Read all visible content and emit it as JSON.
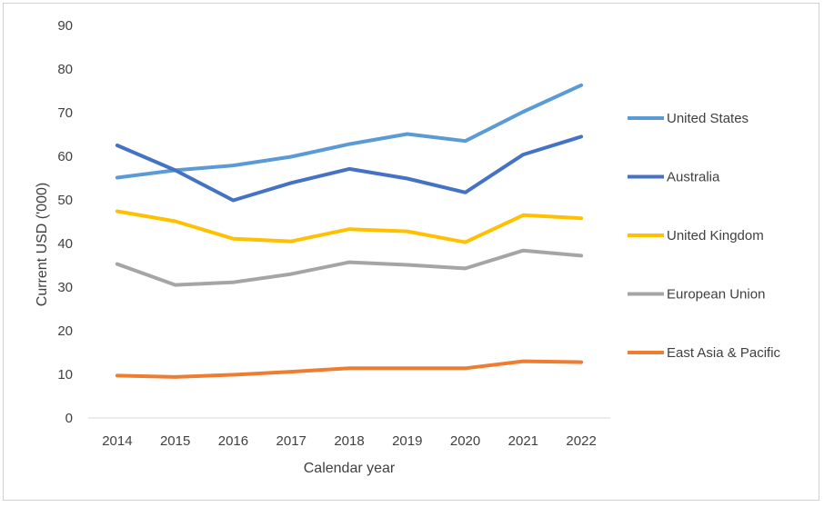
{
  "chart_data": {
    "type": "line",
    "title": "",
    "xlabel": "Calendar year",
    "ylabel": "Current USD ('000)",
    "categories": [
      "2014",
      "2015",
      "2016",
      "2017",
      "2018",
      "2019",
      "2020",
      "2021",
      "2022"
    ],
    "ylim": [
      0,
      90
    ],
    "yticks": [
      0,
      10,
      20,
      30,
      40,
      50,
      60,
      70,
      80,
      90
    ],
    "grid": false,
    "legend_position": "right",
    "series": [
      {
        "name": "United States",
        "color": "#5B9BD5",
        "values": [
          55.1,
          56.8,
          57.9,
          59.9,
          62.8,
          65.1,
          63.5,
          70.2,
          76.3
        ]
      },
      {
        "name": "Australia",
        "color": "#4472C4",
        "values": [
          62.5,
          56.8,
          49.9,
          53.9,
          57.1,
          54.9,
          51.7,
          60.4,
          64.5
        ]
      },
      {
        "name": "United Kingdom",
        "color": "#FFC000",
        "values": [
          47.4,
          45.1,
          41.1,
          40.5,
          43.3,
          42.8,
          40.3,
          46.5,
          45.8
        ]
      },
      {
        "name": "European Union",
        "color": "#A5A5A5",
        "values": [
          35.3,
          30.5,
          31.1,
          33.0,
          35.7,
          35.1,
          34.3,
          38.4,
          37.2
        ]
      },
      {
        "name": "East Asia & Pacific",
        "color": "#ED7D31",
        "values": [
          9.7,
          9.4,
          9.9,
          10.6,
          11.4,
          11.4,
          11.4,
          13.0,
          12.8
        ]
      }
    ]
  }
}
